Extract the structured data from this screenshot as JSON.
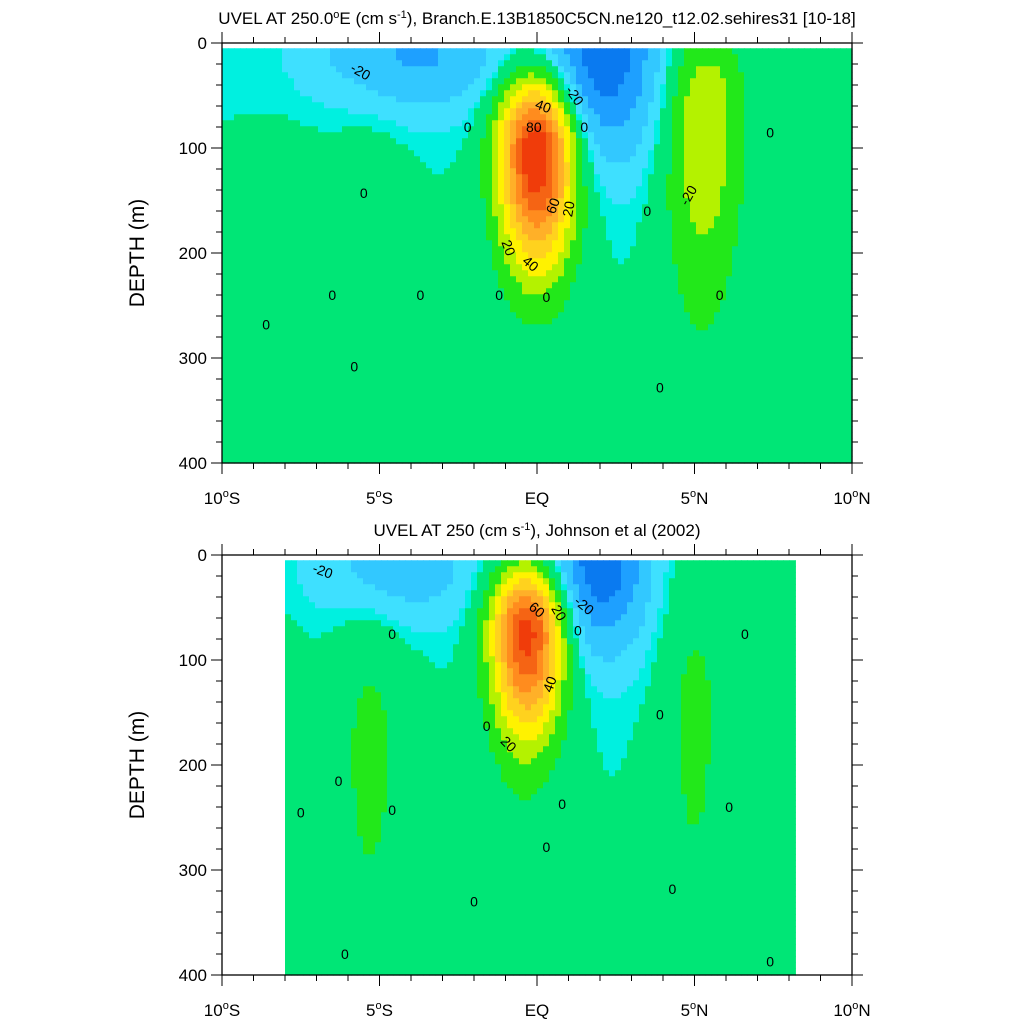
{
  "chart_data": [
    {
      "type": "heatmap",
      "title": "UVEL AT 250.0°E (cm s-1), Branch.E.13B1850C5CN.ne120_t12.02.sehires31 [10-18]",
      "title_parts": {
        "pre": "UVEL AT 250.0",
        "deg": "o",
        "mid": "E (cm s",
        "sup": "-1",
        "post": "), Branch.E.13B1850C5CN.ne120_t12.02.sehires31 [10-18]"
      },
      "xlabel": "",
      "ylabel": "DEPTH (m)",
      "xlim": [
        -10,
        10
      ],
      "ylim": [
        400,
        0
      ],
      "y_reversed": true,
      "x_ticks": [
        {
          "value": -10,
          "label_num": "10",
          "label_dir": "S"
        },
        {
          "value": -5,
          "label_num": "5",
          "label_dir": "S"
        },
        {
          "value": 0,
          "label_num": "",
          "label_dir": "EQ"
        },
        {
          "value": 5,
          "label_num": "5",
          "label_dir": "N"
        },
        {
          "value": 10,
          "label_num": "10",
          "label_dir": "N"
        }
      ],
      "y_ticks": [
        0,
        100,
        200,
        300,
        400
      ],
      "y_tick_labels": [
        "0",
        "100",
        "200",
        "300",
        "400"
      ],
      "data_x_extent": [
        -10,
        10
      ],
      "data_y_extent": [
        5,
        400
      ],
      "contour_interval": 10,
      "background_value": 0,
      "features": [
        {
          "name": "eucore",
          "x": 0,
          "y": 100,
          "peak": 95,
          "sx": 0.85,
          "sy_up": 50,
          "sy_down": 80
        },
        {
          "name": "ncc",
          "x": 5.3,
          "y": 60,
          "peak": 28,
          "sx": 0.9,
          "sy_up": 55,
          "sy_down": 110
        },
        {
          "name": "sec-n",
          "x": 2,
          "y": 10,
          "peak": -38,
          "sx": 1.4,
          "sy_up": 20,
          "sy_down": 70
        },
        {
          "name": "sec-s",
          "x": -4,
          "y": 10,
          "peak": -22,
          "sx": 2.2,
          "sy_up": 20,
          "sy_down": 40
        },
        {
          "name": "jet-s1",
          "x": -5.3,
          "y": 290,
          "peak": 7,
          "sx": 0.9,
          "sy_up": 180,
          "sy_down": 200
        },
        {
          "name": "jet-s2",
          "x": -7.8,
          "y": 330,
          "peak": 5,
          "sx": 1.0,
          "sy_up": 160,
          "sy_down": 200
        },
        {
          "name": "jet-n",
          "x": 5.2,
          "y": 250,
          "peak": 6,
          "sx": 0.9,
          "sy_up": 120,
          "sy_down": 200
        }
      ],
      "contour_labels": [
        {
          "x": -5.6,
          "y": 27,
          "text": "-20",
          "rot": 30
        },
        {
          "x": 1.2,
          "y": 50,
          "text": "-20",
          "rot": 55
        },
        {
          "x": 0.2,
          "y": 60,
          "text": "40",
          "rot": 20
        },
        {
          "x": -0.1,
          "y": 80,
          "text": "80",
          "rot": 0
        },
        {
          "x": 0.5,
          "y": 155,
          "text": "60",
          "rot": -70
        },
        {
          "x": 1.0,
          "y": 158,
          "text": "20",
          "rot": -80
        },
        {
          "x": -0.9,
          "y": 195,
          "text": "20",
          "rot": 70
        },
        {
          "x": -0.2,
          "y": 210,
          "text": "40",
          "rot": 40
        },
        {
          "x": 4.8,
          "y": 145,
          "text": "-20",
          "rot": -60
        },
        {
          "x": -2.2,
          "y": 80,
          "text": "0",
          "rot": 0
        },
        {
          "x": 1.5,
          "y": 80,
          "text": "0",
          "rot": 0
        },
        {
          "x": 7.4,
          "y": 85,
          "text": "0",
          "rot": 0
        },
        {
          "x": -5.5,
          "y": 143,
          "text": "0",
          "rot": 0
        },
        {
          "x": 3.5,
          "y": 160,
          "text": "0",
          "rot": 0
        },
        {
          "x": -6.5,
          "y": 240,
          "text": "0",
          "rot": 0
        },
        {
          "x": -3.7,
          "y": 240,
          "text": "0",
          "rot": 0
        },
        {
          "x": -1.2,
          "y": 240,
          "text": "0",
          "rot": 0
        },
        {
          "x": 0.3,
          "y": 242,
          "text": "0",
          "rot": 0
        },
        {
          "x": 5.8,
          "y": 240,
          "text": "0",
          "rot": 0
        },
        {
          "x": -8.6,
          "y": 268,
          "text": "0",
          "rot": 0
        },
        {
          "x": -5.8,
          "y": 308,
          "text": "0",
          "rot": 0
        },
        {
          "x": 3.9,
          "y": 328,
          "text": "0",
          "rot": 0
        }
      ]
    },
    {
      "type": "heatmap",
      "title": "UVEL AT 250 (cm s-1), Johnson et al (2002)",
      "title_parts": {
        "pre": "UVEL AT 250",
        "deg": "",
        "mid": " (cm s",
        "sup": "-1",
        "post": "), Johnson et al (2002)"
      },
      "xlabel": "",
      "ylabel": "DEPTH (m)",
      "xlim": [
        -10,
        10
      ],
      "ylim": [
        400,
        0
      ],
      "y_reversed": true,
      "x_ticks": [
        {
          "value": -10,
          "label_num": "10",
          "label_dir": "S"
        },
        {
          "value": -5,
          "label_num": "5",
          "label_dir": "S"
        },
        {
          "value": 0,
          "label_num": "",
          "label_dir": "EQ"
        },
        {
          "value": 5,
          "label_num": "5",
          "label_dir": "N"
        },
        {
          "value": 10,
          "label_num": "10",
          "label_dir": "N"
        }
      ],
      "y_ticks": [
        0,
        100,
        200,
        300,
        400
      ],
      "y_tick_labels": [
        "0",
        "100",
        "200",
        "300",
        "400"
      ],
      "data_x_extent": [
        -8,
        8.2
      ],
      "data_y_extent": [
        5,
        400
      ],
      "contour_interval": 10,
      "background_value": 0,
      "features": [
        {
          "name": "eucore",
          "x": -0.3,
          "y": 70,
          "peak": 85,
          "sx": 0.8,
          "sy_up": 40,
          "sy_down": 70
        },
        {
          "name": "jet-s",
          "x": -5.3,
          "y": 190,
          "peak": 12,
          "sx": 0.9,
          "sy_up": 120,
          "sy_down": 160
        },
        {
          "name": "jet-n",
          "x": 5,
          "y": 150,
          "peak": 12,
          "sx": 0.8,
          "sy_up": 110,
          "sy_down": 180
        },
        {
          "name": "sec-n",
          "x": 2,
          "y": 5,
          "peak": -38,
          "sx": 1.1,
          "sy_up": 15,
          "sy_down": 60
        },
        {
          "name": "sec-s",
          "x": -4.5,
          "y": 10,
          "peak": -18,
          "sx": 1.8,
          "sy_up": 15,
          "sy_down": 40
        },
        {
          "name": "eq-deep",
          "x": -0.5,
          "y": 300,
          "peak": 5,
          "sx": 0.8,
          "sy_up": 150,
          "sy_down": 200
        },
        {
          "name": "edge-w",
          "x": -7.8,
          "y": 260,
          "peak": 6,
          "sx": 0.4,
          "sy_up": 120,
          "sy_down": 200
        }
      ],
      "contour_labels": [
        {
          "x": -6.8,
          "y": 15,
          "text": "-20",
          "rot": 20
        },
        {
          "x": 1.5,
          "y": 48,
          "text": "-20",
          "rot": 40
        },
        {
          "x": 0.0,
          "y": 52,
          "text": "60",
          "rot": 40
        },
        {
          "x": 0.7,
          "y": 55,
          "text": "20",
          "rot": 60
        },
        {
          "x": 0.4,
          "y": 123,
          "text": "40",
          "rot": -70
        },
        {
          "x": -0.9,
          "y": 180,
          "text": "20",
          "rot": 45
        },
        {
          "x": 1.3,
          "y": 72,
          "text": "0",
          "rot": 0
        },
        {
          "x": -4.6,
          "y": 75,
          "text": "0",
          "rot": 0
        },
        {
          "x": 6.6,
          "y": 75,
          "text": "0",
          "rot": 0
        },
        {
          "x": -1.6,
          "y": 163,
          "text": "0",
          "rot": 0
        },
        {
          "x": 3.9,
          "y": 152,
          "text": "0",
          "rot": 0
        },
        {
          "x": -6.3,
          "y": 215,
          "text": "0",
          "rot": 0
        },
        {
          "x": -7.5,
          "y": 245,
          "text": "0",
          "rot": 0
        },
        {
          "x": -4.6,
          "y": 243,
          "text": "0",
          "rot": 0
        },
        {
          "x": 6.1,
          "y": 240,
          "text": "0",
          "rot": 0
        },
        {
          "x": 0.8,
          "y": 237,
          "text": "0",
          "rot": 0
        },
        {
          "x": 0.3,
          "y": 278,
          "text": "0",
          "rot": 0
        },
        {
          "x": -2.0,
          "y": 330,
          "text": "0",
          "rot": 0
        },
        {
          "x": 4.3,
          "y": 318,
          "text": "0",
          "rot": 0
        },
        {
          "x": -6.1,
          "y": 380,
          "text": "0",
          "rot": 0
        },
        {
          "x": 7.4,
          "y": 387,
          "text": "0",
          "rot": 0
        }
      ]
    }
  ],
  "colors": {
    "n50": "#0050e6",
    "n40": "#0a7af0",
    "n30": "#1ea0ff",
    "n20": "#32c8ff",
    "n10": "#3ee0ff",
    "z0": "#00f0e0",
    "p0": "#00e676",
    "p10": "#22e81a",
    "p20": "#b4f200",
    "p30": "#fff200",
    "p40": "#ffd21e",
    "p50": "#ffb028",
    "p60": "#ff8c1e",
    "p70": "#f56414",
    "p80": "#f03c0a",
    "p90": "#e60000"
  }
}
